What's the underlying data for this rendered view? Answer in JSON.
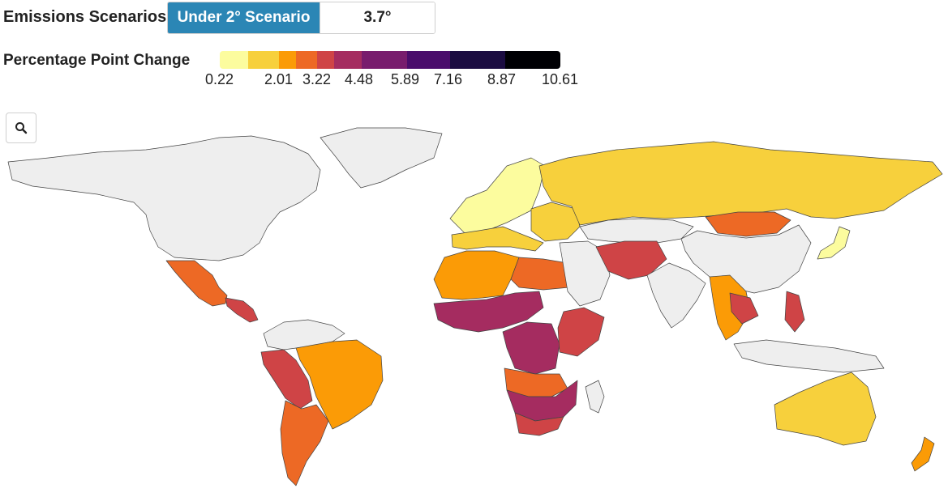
{
  "scenarios": {
    "label": "Emissions Scenarios:",
    "options": [
      {
        "label": "Under 2° Scenario",
        "active": true
      },
      {
        "label": "3.7° Scenario",
        "active": false
      }
    ]
  },
  "legend": {
    "title": "Percentage Point Change",
    "ticks": [
      "0.22",
      "2.01",
      "3.22",
      "4.48",
      "5.89",
      "7.16",
      "8.87",
      "10.61"
    ],
    "colors": [
      "#fcfc9e",
      "#f7d03c",
      "#fb9b06",
      "#ed6925",
      "#cf4446",
      "#a52c60",
      "#781c6d",
      "#4a0c6b",
      "#1b0c41",
      "#000004"
    ]
  },
  "zoom": {
    "icon": "search-icon"
  },
  "map": {
    "no_data_color": "#eeeeee",
    "regions": [
      {
        "id": "north-america",
        "fill": "#eeeeee"
      },
      {
        "id": "greenland",
        "fill": "#eeeeee"
      },
      {
        "id": "mexico",
        "fill": "#ed6925"
      },
      {
        "id": "central-america",
        "fill": "#cf4446"
      },
      {
        "id": "brazil",
        "fill": "#fb9b06"
      },
      {
        "id": "peru-bolivia",
        "fill": "#cf4446"
      },
      {
        "id": "argentina-chile",
        "fill": "#ed6925"
      },
      {
        "id": "northern-south-america",
        "fill": "#eeeeee"
      },
      {
        "id": "northern-europe",
        "fill": "#fcfc9e"
      },
      {
        "id": "southern-europe",
        "fill": "#f7d03c"
      },
      {
        "id": "eastern-europe",
        "fill": "#f7d03c"
      },
      {
        "id": "russia",
        "fill": "#f7d03c"
      },
      {
        "id": "north-africa",
        "fill": "#fb9b06"
      },
      {
        "id": "egypt-libya",
        "fill": "#ed6925"
      },
      {
        "id": "sahel",
        "fill": "#a52c60"
      },
      {
        "id": "central-africa",
        "fill": "#a52c60"
      },
      {
        "id": "east-africa",
        "fill": "#cf4446"
      },
      {
        "id": "angola-zambia",
        "fill": "#ed6925"
      },
      {
        "id": "southern-africa",
        "fill": "#a52c60"
      },
      {
        "id": "south-africa",
        "fill": "#cf4446"
      },
      {
        "id": "middle-east",
        "fill": "#eeeeee"
      },
      {
        "id": "central-asia",
        "fill": "#eeeeee"
      },
      {
        "id": "afghanistan-pakistan",
        "fill": "#cf4446"
      },
      {
        "id": "india",
        "fill": "#eeeeee"
      },
      {
        "id": "mongolia",
        "fill": "#ed6925"
      },
      {
        "id": "china",
        "fill": "#eeeeee"
      },
      {
        "id": "southeast-asia",
        "fill": "#fb9b06"
      },
      {
        "id": "thailand-cambodia",
        "fill": "#cf4446"
      },
      {
        "id": "philippines",
        "fill": "#cf4446"
      },
      {
        "id": "japan",
        "fill": "#fcfc9e"
      },
      {
        "id": "indonesia",
        "fill": "#eeeeee"
      },
      {
        "id": "australia",
        "fill": "#f7d03c"
      },
      {
        "id": "new-zealand",
        "fill": "#fb9b06"
      },
      {
        "id": "madagascar",
        "fill": "#eeeeee"
      }
    ]
  }
}
